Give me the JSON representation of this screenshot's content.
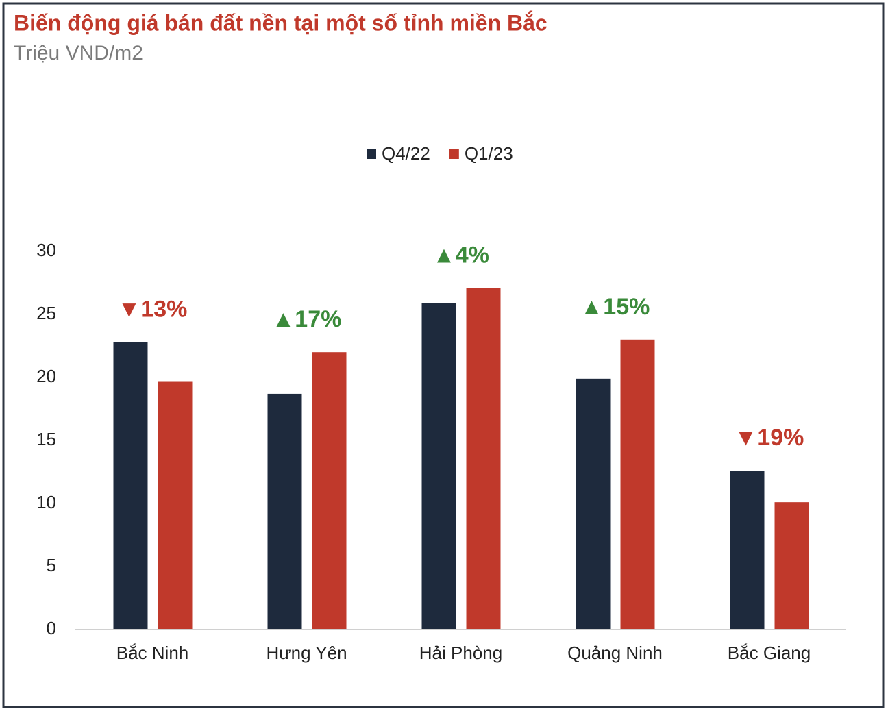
{
  "chart_data": {
    "type": "bar",
    "title": "Biến động giá bán đất nền tại một số tỉnh miền Bắc",
    "subtitle": "Triệu VND/m2",
    "categories": [
      "Bắc Ninh",
      "Hưng Yên",
      "Hải Phòng",
      "Quảng Ninh",
      "Bắc Giang"
    ],
    "series": [
      {
        "name": "Q4/22",
        "color": "#1e2a3d",
        "values": [
          22.8,
          18.7,
          25.9,
          19.9,
          12.6
        ]
      },
      {
        "name": "Q1/23",
        "color": "#c0392b",
        "values": [
          19.7,
          22.0,
          27.1,
          23.0,
          10.1
        ]
      }
    ],
    "annotations": [
      {
        "text": "▼13%",
        "color": "#c0392b"
      },
      {
        "text": "▲17%",
        "color": "#3a8a3a"
      },
      {
        "text": "▲4%",
        "color": "#3a8a3a"
      },
      {
        "text": "▲15%",
        "color": "#3a8a3a"
      },
      {
        "text": "▼19%",
        "color": "#c0392b"
      }
    ],
    "ylim": [
      0,
      30
    ],
    "yticks": [
      0,
      5,
      10,
      15,
      20,
      25,
      30
    ],
    "grid": false,
    "legend": "top"
  }
}
